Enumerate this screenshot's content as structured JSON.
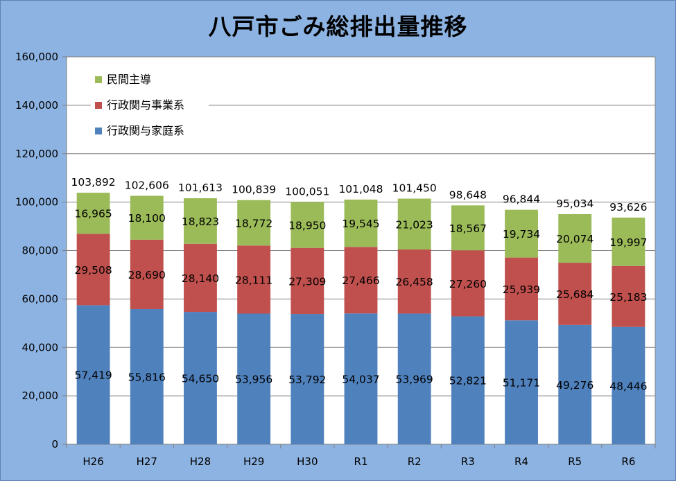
{
  "chart_data": {
    "type": "bar",
    "stacked": true,
    "title": "八戸市ごみ総排出量推移",
    "categories": [
      "H26",
      "H27",
      "H28",
      "H29",
      "H30",
      "R1",
      "R2",
      "R3",
      "R4",
      "R5",
      "R6"
    ],
    "series": [
      {
        "name": "行政関与家庭系",
        "color": "#4f81bd",
        "values": [
          57419,
          55816,
          54650,
          53956,
          53792,
          54037,
          53969,
          52821,
          51171,
          49276,
          48446
        ]
      },
      {
        "name": "行政関与事業系",
        "color": "#c0504d",
        "values": [
          29508,
          28690,
          28140,
          28111,
          27309,
          27466,
          26458,
          27260,
          25939,
          25684,
          25183
        ]
      },
      {
        "name": "民間主導",
        "color": "#9bbb59",
        "values": [
          16965,
          18100,
          18823,
          18772,
          18950,
          19545,
          21023,
          18567,
          19734,
          20074,
          19997
        ]
      }
    ],
    "totals": [
      103892,
      102606,
      101613,
      100839,
      100051,
      101048,
      101450,
      98648,
      96844,
      95034,
      93626
    ],
    "ylim": [
      0,
      160000
    ],
    "yticks": [
      0,
      20000,
      40000,
      60000,
      80000,
      100000,
      120000,
      140000,
      160000
    ],
    "grid": true,
    "legend": "top-left",
    "plot_background": "#ffffff"
  }
}
